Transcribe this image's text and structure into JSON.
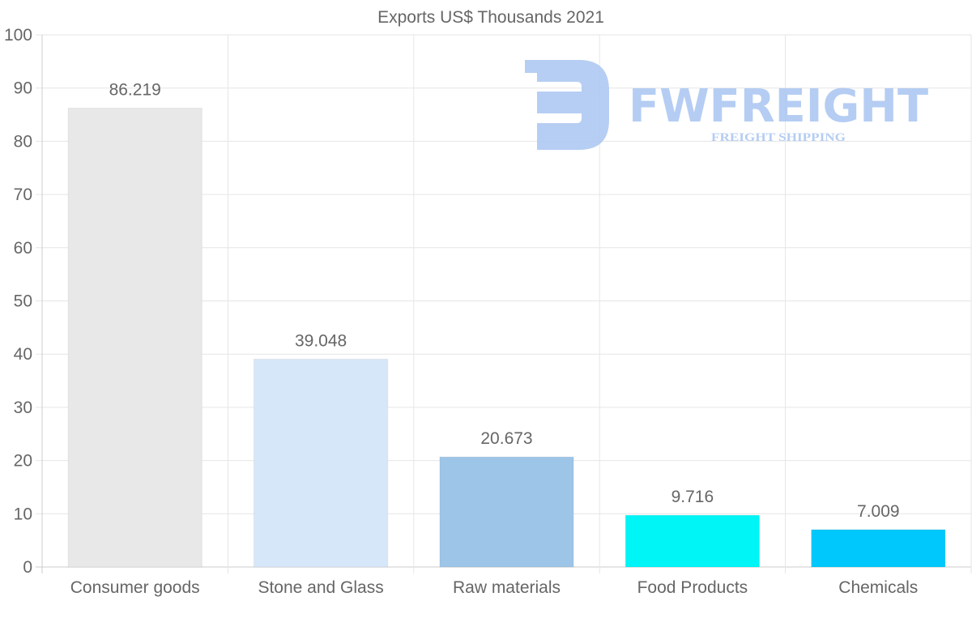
{
  "chart_data": {
    "type": "bar",
    "title": "Exports US$ Thousands 2021",
    "categories": [
      "Consumer goods",
      "Stone and Glass",
      "Raw materials",
      "Food Products",
      "Chemicals"
    ],
    "values": [
      86.219,
      39.048,
      20.673,
      9.716,
      7.009
    ],
    "value_labels": [
      "86.219",
      "39.048",
      "20.673",
      "9.716",
      "7.009"
    ],
    "colors": [
      "#e8e8e8",
      "#d6e7f9",
      "#9dc5e8",
      "#00f6f6",
      "#00c8fc"
    ],
    "ylim": [
      0,
      100
    ],
    "yticks": [
      "0",
      "10",
      "20",
      "30",
      "40",
      "50",
      "60",
      "70",
      "80",
      "90",
      "100"
    ],
    "xlabel": "",
    "ylabel": "",
    "grid": true
  },
  "watermark": {
    "brand": "FWFREIGHT",
    "tagline": "FREIGHT SHIPPING",
    "color": "#a9c5f1"
  }
}
